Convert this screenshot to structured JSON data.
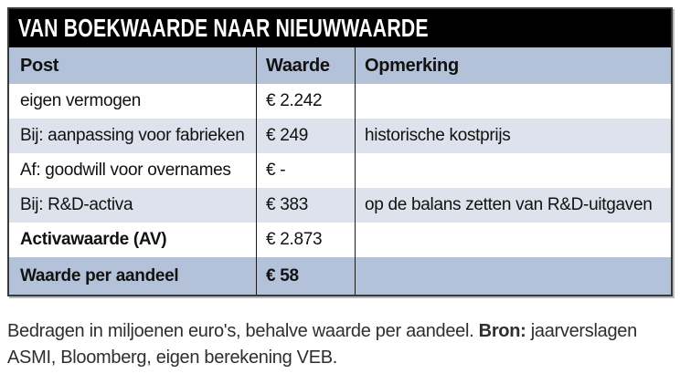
{
  "table": {
    "title": "VAN BOEKWAARDE NAAR NIEUWWAARDE",
    "columns": [
      "Post",
      "Waarde",
      "Opmerking"
    ],
    "rows": [
      {
        "post": "eigen vermogen",
        "waarde": "€ 2.242",
        "opmerking": "",
        "bold": "none",
        "bg": "white"
      },
      {
        "post": "Bij: aanpassing voor fabrieken",
        "waarde": "€ 249",
        "opmerking": "historische kostprijs",
        "bold": "none",
        "bg": "light"
      },
      {
        "post": "Af: goodwill voor overnames",
        "waarde": "€ -",
        "opmerking": "",
        "bold": "none",
        "bg": "white"
      },
      {
        "post": "Bij: R&D-activa",
        "waarde": "€ 383",
        "opmerking": "op de balans zetten van R&D-uitgaven",
        "bold": "none",
        "bg": "light"
      },
      {
        "post": "Activawaarde (AV)",
        "waarde": "€ 2.873",
        "opmerking": "",
        "bold": "post",
        "bg": "white"
      },
      {
        "post": "Waarde per aandeel",
        "waarde": "€ 58",
        "opmerking": "",
        "bold": "all",
        "bg": "medium"
      }
    ]
  },
  "footnote": {
    "line1_regular": "Bedragen in miljoenen euro's, behalve waarde per aandeel. ",
    "line1_bold": "Bron:",
    "line1_tail": " jaarverslagen",
    "line2": "ASMI, Bloomberg, eigen berekening VEB."
  },
  "colors": {
    "title_bg": "#000000",
    "header_row_bg": "#b3c2d9",
    "alt_row_bg": "#dde2ec",
    "row_bg": "#ffffff",
    "border": "#3a3a3a"
  }
}
